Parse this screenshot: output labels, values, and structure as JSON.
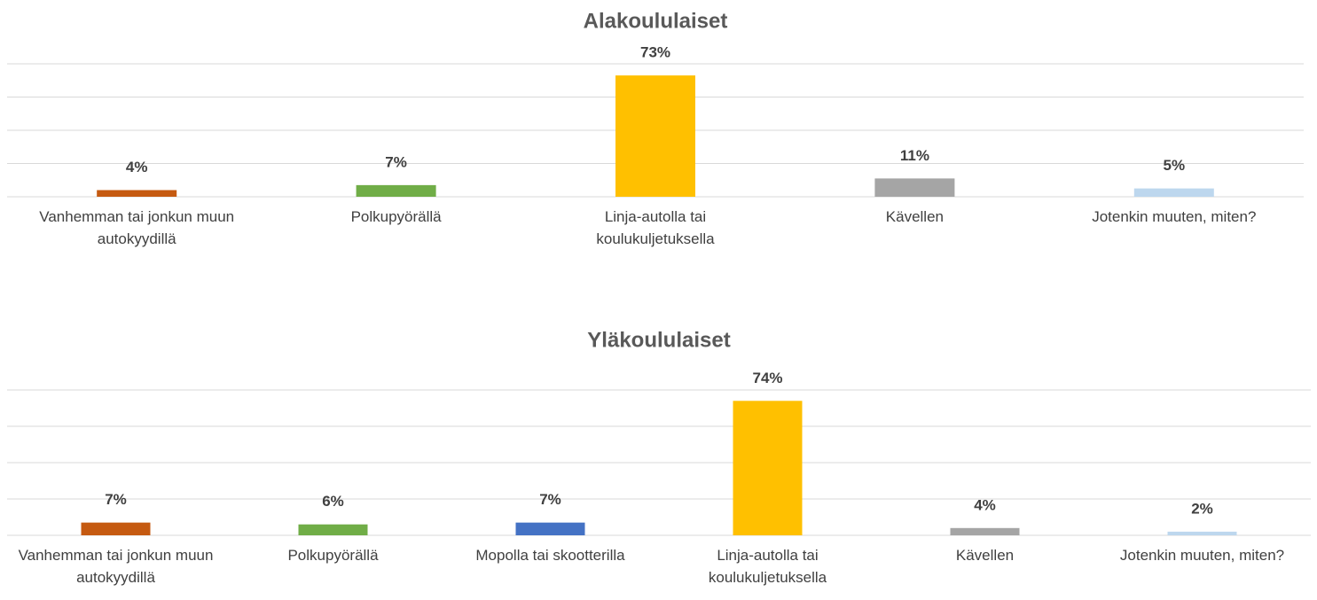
{
  "chart_data": [
    {
      "type": "bar",
      "title": "Alakoululaiset",
      "categories": [
        "Vanhemman tai jonkun muun autokyydillä",
        "Polkupyörällä",
        "Linja-autolla tai koulukuljetuksella",
        "Kävellen",
        "Jotenkin muuten, miten?"
      ],
      "values": [
        4,
        7,
        73,
        11,
        5
      ],
      "value_labels": [
        "4%",
        "7%",
        "73%",
        "11%",
        "5%"
      ],
      "colors": [
        "#c55a11",
        "#70ad47",
        "#ffc000",
        "#a5a5a5",
        "#bdd7ee"
      ],
      "ylim": [
        0,
        80
      ],
      "yticks": [
        0,
        20,
        40,
        60,
        80
      ],
      "grid": true
    },
    {
      "type": "bar",
      "title": "Yläkoululaiset",
      "categories": [
        "Vanhemman tai jonkun muun autokyydillä",
        "Polkupyörällä",
        "Mopolla tai skootterilla",
        "Linja-autolla tai koulukuljetuksella",
        "Kävellen",
        "Jotenkin muuten, miten?"
      ],
      "values": [
        7,
        6,
        7,
        74,
        4,
        2
      ],
      "value_labels": [
        "7%",
        "6%",
        "7%",
        "74%",
        "4%",
        "2%"
      ],
      "colors": [
        "#c55a11",
        "#70ad47",
        "#4472c4",
        "#ffc000",
        "#a5a5a5",
        "#bdd7ee"
      ],
      "ylim": [
        0,
        80
      ],
      "yticks": [
        0,
        20,
        40,
        60,
        80
      ],
      "grid": true
    }
  ]
}
